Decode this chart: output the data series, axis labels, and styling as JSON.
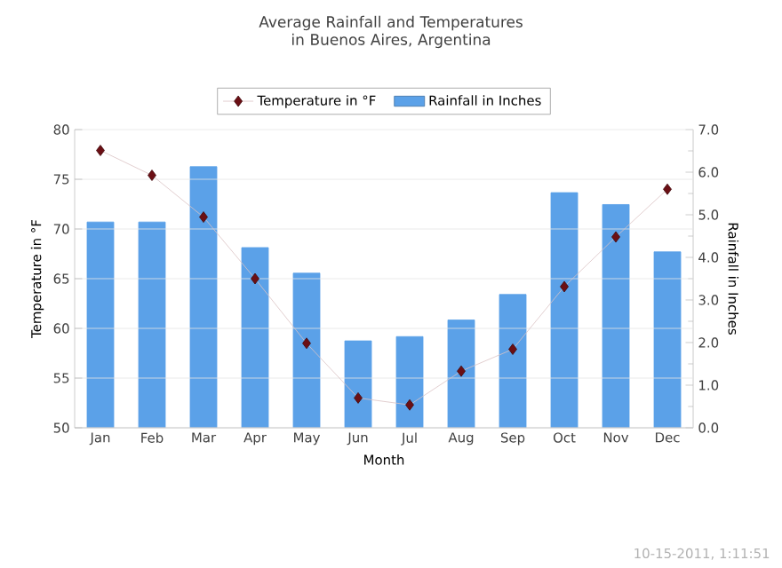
{
  "chart_data": {
    "type": "line",
    "title": "Average Rainfall and Temperatures in Buenos Aires, Argentina",
    "xlabel": "Month",
    "ylabel": "Temperature in °F",
    "y2label": "Rainfall in Inches",
    "categories": [
      "Jan",
      "Feb",
      "Mar",
      "Apr",
      "May",
      "Jun",
      "Jul",
      "Aug",
      "Sep",
      "Oct",
      "Nov",
      "Dec"
    ],
    "series": [
      {
        "name": "Rainfall in Inches",
        "type": "bar",
        "axis": "y2",
        "color": "#5ba1e8",
        "values": [
          4.83,
          4.83,
          6.13,
          4.23,
          3.63,
          2.04,
          2.14,
          2.53,
          3.13,
          5.52,
          5.24,
          4.13
        ]
      },
      {
        "name": "Temperature in °F",
        "color": "#6b0f14",
        "values": [
          77.9,
          75.4,
          71.2,
          65.0,
          58.5,
          53.0,
          52.3,
          55.7,
          57.9,
          64.2,
          69.2,
          74.0
        ]
      }
    ],
    "ylim": [
      50,
      80
    ],
    "yticks": [
      50,
      55,
      60,
      65,
      70,
      75,
      80
    ],
    "y2lim": [
      0,
      7
    ],
    "y2ticks": [
      {
        "value": 0,
        "label": "0.0"
      },
      {
        "value": 1,
        "label": "1.0"
      },
      {
        "value": 2,
        "label": "2.0"
      },
      {
        "value": 3,
        "label": "3.0"
      },
      {
        "value": 4,
        "label": "4.0"
      },
      {
        "value": 5,
        "label": "5.0"
      },
      {
        "value": 6,
        "label": "6.0"
      },
      {
        "value": 7,
        "label": "7.0"
      }
    ],
    "grid": "y",
    "legend": "top",
    "marker": "diamond",
    "annotations": [
      "10-15-2011, 1:11:51"
    ]
  }
}
